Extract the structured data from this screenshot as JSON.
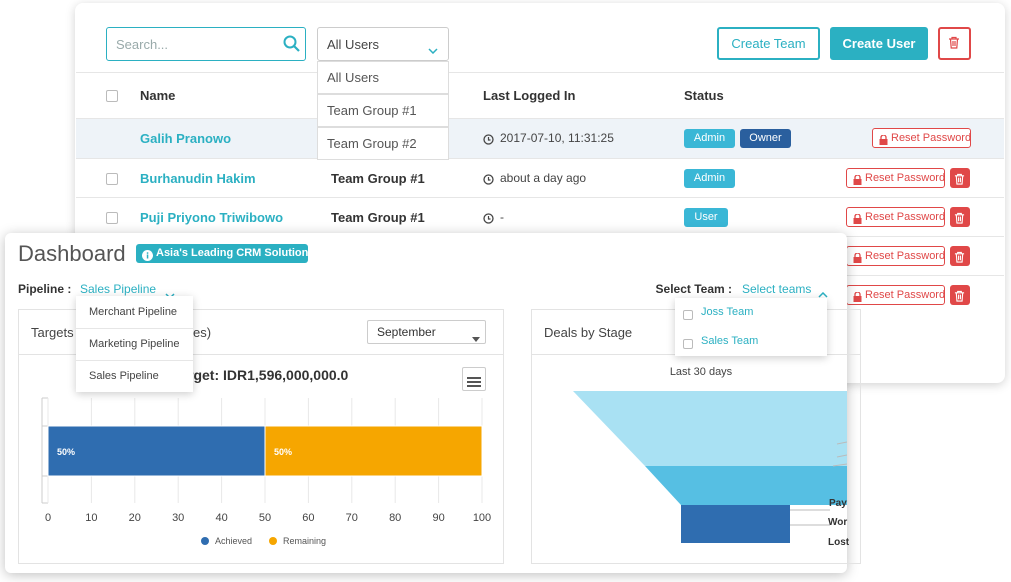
{
  "toolbar": {
    "search_placeholder": "Search...",
    "user_filter": {
      "selected": "All Users",
      "options": [
        "All Users",
        "Team Group #1",
        "Team Group #2"
      ]
    },
    "buttons": [
      "Create Team",
      "Create User"
    ]
  },
  "table": {
    "headers": [
      "Name",
      "Last Logged In",
      "Status"
    ],
    "rows": [
      {
        "name": "Galih Pranowo",
        "last_login": "2017-07-10, 11:31:25",
        "badges": [
          "Admin",
          "Owner"
        ],
        "action": "Reset Password"
      },
      {
        "name": "Burhanudin Hakim",
        "team": "Team Group #1",
        "last_login": "about a day ago",
        "badges": [
          "Admin"
        ],
        "action": "Reset Password"
      },
      {
        "name": "Puji Priyono Triwibowo",
        "team": "Team Group #1",
        "last_login": "-",
        "badges": [
          "User"
        ],
        "action": "Reset Password"
      },
      {
        "action": "Reset Password"
      },
      {
        "action": "Reset Password"
      }
    ]
  },
  "dashboard": {
    "title": "Dashboard",
    "badge": "Asia's Leading CRM Solution",
    "pipeline_label": "Pipeline :",
    "pipeline_selected": "Sales Pipeline",
    "pipeline_options": [
      "Merchant Pipeline",
      "Marketing Pipeline",
      "Sales Pipeline"
    ],
    "team_label": "Select Team :",
    "team_placeholder": "Select teams",
    "team_options": [
      "Joss Team",
      "Sales Team"
    ],
    "targets": {
      "title": "Targets",
      "title_tail": "es)",
      "target_text": "rget: IDR1,596,000,000.0",
      "month": "September"
    },
    "deals": {
      "title": "Deals by Stage",
      "subtitle": "Last 30 days",
      "stage_labels": [
        "Pay",
        "Wor",
        "Lost"
      ]
    }
  },
  "chart_data": {
    "type": "bar",
    "orientation": "horizontal",
    "stacked": true,
    "categories": [
      null
    ],
    "series": [
      {
        "name": "Achieved",
        "color": "#2f6db0",
        "values": [
          50
        ],
        "value_labels": [
          "50%"
        ]
      },
      {
        "name": "Remaining",
        "color": "#f6a600",
        "values": [
          50
        ],
        "value_labels": [
          "50%"
        ]
      }
    ],
    "xlim": [
      0,
      100
    ],
    "xticks": [
      0,
      10,
      20,
      30,
      40,
      50,
      60,
      70,
      80,
      90,
      100
    ],
    "grid": true,
    "legend": "bottom"
  }
}
